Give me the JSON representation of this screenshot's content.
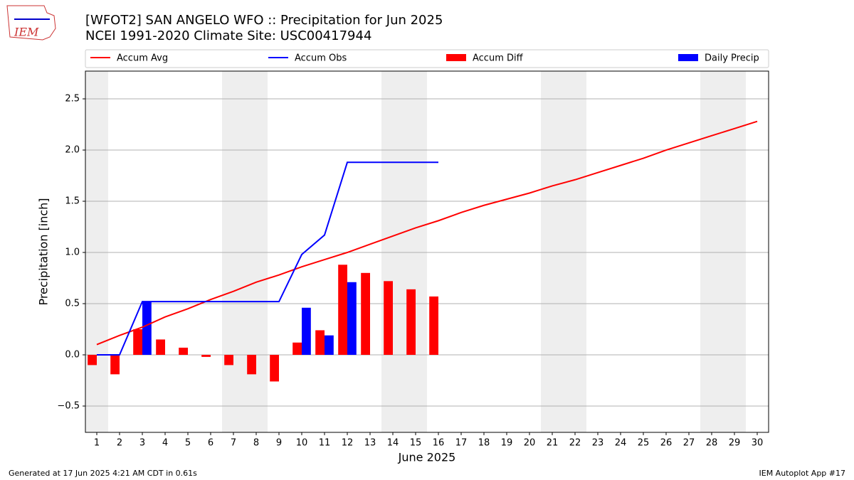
{
  "logo": "IEM",
  "footer_left": "Generated at 17 Jun 2025 4:21 AM CDT in 0.61s",
  "footer_right": "IEM Autoplot App #17",
  "chart_data": {
    "type": "combo",
    "title": "[WFOT2] SAN ANGELO WFO :: Precipitation for Jun 2025",
    "subtitle": "NCEI 1991-2020 Climate Site: USC00417944",
    "xlabel": "June 2025",
    "ylabel": "Precipitation [inch]",
    "x": [
      1,
      2,
      3,
      4,
      5,
      6,
      7,
      8,
      9,
      10,
      11,
      12,
      13,
      14,
      15,
      16,
      17,
      18,
      19,
      20,
      21,
      22,
      23,
      24,
      25,
      26,
      27,
      28,
      29,
      30
    ],
    "xlim": [
      0.5,
      30.5
    ],
    "xticks": [
      1,
      2,
      3,
      4,
      5,
      6,
      7,
      8,
      9,
      10,
      11,
      12,
      13,
      14,
      15,
      16,
      17,
      18,
      19,
      20,
      21,
      22,
      23,
      24,
      25,
      26,
      27,
      28,
      29,
      30
    ],
    "ylim": [
      -0.757,
      2.771
    ],
    "yticks": [
      {
        "value": -0.5,
        "label": "−0.5"
      },
      {
        "value": 0,
        "label": "0.0"
      },
      0.5,
      {
        "value": 1,
        "label": "1.0"
      },
      1.5,
      {
        "value": 2,
        "label": "2.0"
      },
      2.5
    ],
    "grid": true,
    "shaded_days": [
      1,
      7,
      8,
      14,
      15,
      21,
      22,
      28,
      29
    ],
    "shade_color": "#eeeeee",
    "legend": "top",
    "series": [
      {
        "name": "Accum Avg",
        "type": "line",
        "color": "#ff0000",
        "values": [
          0.1,
          0.19,
          0.27,
          0.37,
          0.45,
          0.54,
          0.62,
          0.71,
          0.78,
          0.86,
          0.93,
          1.0,
          1.08,
          1.16,
          1.24,
          1.31,
          1.39,
          1.46,
          1.52,
          1.58,
          1.65,
          1.71,
          1.78,
          1.85,
          1.92,
          2.0,
          2.07,
          2.14,
          2.21,
          2.28
        ]
      },
      {
        "name": "Accum Obs",
        "type": "line",
        "color": "#0000ff",
        "values": [
          0,
          0,
          0.52,
          0.52,
          0.52,
          0.52,
          0.52,
          0.52,
          0.52,
          0.98,
          1.17,
          1.88,
          1.88,
          1.88,
          1.88,
          1.88,
          null,
          null,
          null,
          null,
          null,
          null,
          null,
          null,
          null,
          null,
          null,
          null,
          null,
          null
        ]
      },
      {
        "name": "Accum Diff",
        "type": "bar",
        "side": "left",
        "color": "#ff0000",
        "values": [
          -0.1,
          -0.19,
          0.25,
          0.15,
          0.07,
          -0.02,
          -0.1,
          -0.19,
          -0.26,
          0.12,
          0.24,
          0.88,
          0.8,
          0.72,
          0.64,
          0.57,
          null,
          null,
          null,
          null,
          null,
          null,
          null,
          null,
          null,
          null,
          null,
          null,
          null,
          null
        ]
      },
      {
        "name": "Daily Precip",
        "type": "bar",
        "side": "right",
        "color": "#0000ff",
        "values": [
          0,
          0,
          0.52,
          0,
          0,
          0,
          0,
          0,
          0,
          0.46,
          0.19,
          0.71,
          0,
          0,
          0,
          0,
          null,
          null,
          null,
          null,
          null,
          null,
          null,
          null,
          null,
          null,
          null,
          null,
          null,
          null
        ]
      }
    ]
  }
}
